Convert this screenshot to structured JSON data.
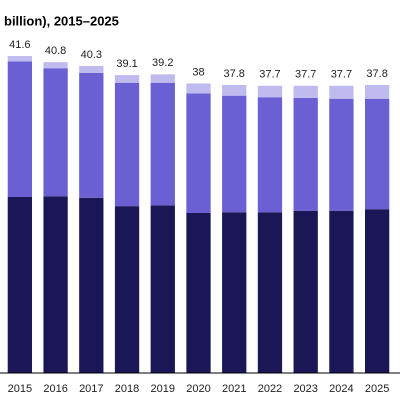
{
  "chart_data": {
    "type": "stacked_bar",
    "title": "billion), 2015–2025",
    "categories": [
      "2015",
      "2016",
      "2017",
      "2018",
      "2019",
      "2020",
      "2021",
      "2022",
      "2023",
      "2024",
      "2025"
    ],
    "series": [
      {
        "color": "#1b1757",
        "values": [
          23.1,
          23.2,
          23.0,
          21.9,
          22.0,
          21.0,
          21.1,
          21.1,
          21.3,
          21.3,
          21.5
        ]
      },
      {
        "color": "#6a60d4",
        "values": [
          17.8,
          16.8,
          16.4,
          16.2,
          16.1,
          15.7,
          15.3,
          15.1,
          14.8,
          14.7,
          14.5
        ]
      },
      {
        "color": "#c0bbee",
        "values": [
          0.7,
          0.8,
          0.9,
          1.0,
          1.1,
          1.3,
          1.4,
          1.5,
          1.6,
          1.7,
          1.8
        ]
      }
    ],
    "totals": [
      41.6,
      40.8,
      40.3,
      39.1,
      39.2,
      38.0,
      37.8,
      37.7,
      37.7,
      37.7,
      37.8
    ],
    "ylim": [
      0,
      42
    ]
  }
}
